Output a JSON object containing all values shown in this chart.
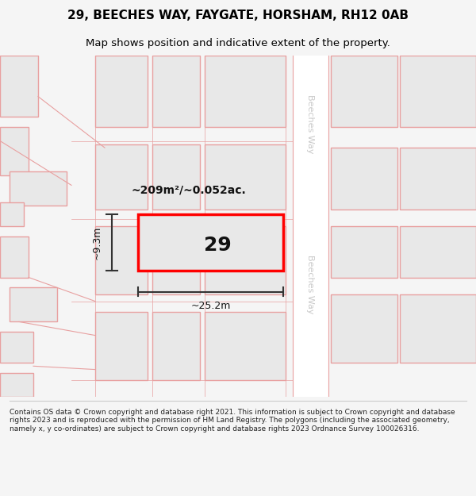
{
  "title": "29, BEECHES WAY, FAYGATE, HORSHAM, RH12 0AB",
  "subtitle": "Map shows position and indicative extent of the property.",
  "footer": "Contains OS data © Crown copyright and database right 2021. This information is subject to Crown copyright and database rights 2023 and is reproduced with the permission of HM Land Registry. The polygons (including the associated geometry, namely x, y co-ordinates) are subject to Crown copyright and database rights 2023 Ordnance Survey 100026316.",
  "bg_color": "#f5f5f5",
  "map_bg": "#ffffff",
  "footer_bg": "#ffffff",
  "title_fontsize": 11,
  "subtitle_fontsize": 9.5,
  "label_area": "~209m²/~0.052ac.",
  "label_width": "~25.2m",
  "label_height": "~9.3m",
  "label_number": "29",
  "road_label_top": "Beeches Way",
  "road_label_bottom": "Beeches Way",
  "plot_outline_color": "#e8a0a0",
  "highlight_color": "#ff0000",
  "dim_line_color": "#333333",
  "road_text_color": "#c8c8c8"
}
